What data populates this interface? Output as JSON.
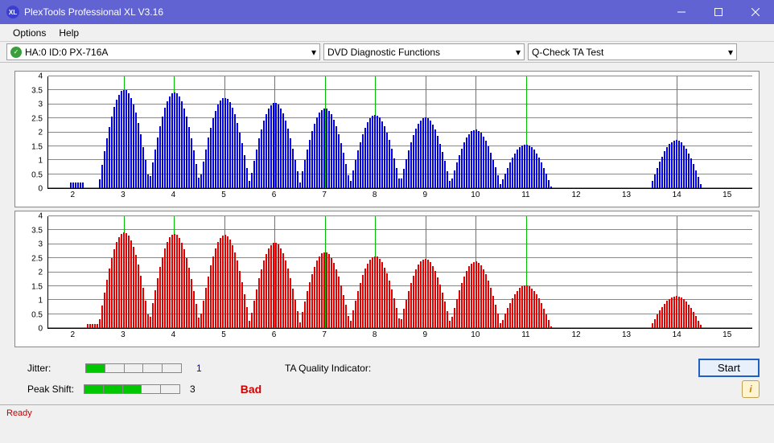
{
  "window": {
    "title": "PlexTools Professional XL V3.16",
    "icon_text": "XL"
  },
  "menu": {
    "options": "Options",
    "help": "Help"
  },
  "toolbar": {
    "drive": "HA:0 ID:0  PX-716A",
    "func": "DVD Diagnostic Functions",
    "test": "Q-Check TA Test"
  },
  "charts": {
    "ylabels": [
      "0",
      "0.5",
      "1",
      "1.5",
      "2",
      "2.5",
      "3",
      "3.5",
      "4"
    ],
    "xlabels": [
      "2",
      "3",
      "4",
      "5",
      "6",
      "7",
      "8",
      "9",
      "10",
      "11",
      "12",
      "13",
      "14",
      "15"
    ],
    "xmin": 1.5,
    "xmax": 15.5,
    "ymax": 4.2,
    "vlines": [
      3,
      4,
      5,
      6,
      7,
      8,
      9,
      10,
      11,
      14
    ],
    "top": {
      "color": "#0000e0",
      "humps": [
        {
          "c": 3,
          "h": 3.7
        },
        {
          "c": 4,
          "h": 3.6
        },
        {
          "c": 5,
          "h": 3.4
        },
        {
          "c": 6,
          "h": 3.2
        },
        {
          "c": 7,
          "h": 3.0
        },
        {
          "c": 8,
          "h": 2.75
        },
        {
          "c": 9,
          "h": 2.65
        },
        {
          "c": 10,
          "h": 2.2
        },
        {
          "c": 11,
          "h": 1.65
        },
        {
          "c": 14,
          "h": 1.8
        }
      ],
      "tail": {
        "c": 2.05,
        "h": 0.2
      }
    },
    "bot": {
      "color": "#e00000",
      "humps": [
        {
          "c": 3,
          "h": 3.6
        },
        {
          "c": 4,
          "h": 3.55
        },
        {
          "c": 5,
          "h": 3.5
        },
        {
          "c": 6,
          "h": 3.2
        },
        {
          "c": 7,
          "h": 2.85
        },
        {
          "c": 8,
          "h": 2.7
        },
        {
          "c": 9,
          "h": 2.6
        },
        {
          "c": 10,
          "h": 2.5
        },
        {
          "c": 11,
          "h": 1.6
        },
        {
          "c": 14,
          "h": 1.2
        }
      ],
      "tail": {
        "c": 2.4,
        "h": 0.15
      }
    }
  },
  "metrics": {
    "jitter_label": "Jitter:",
    "jitter_val": "1",
    "jitter_on": 1,
    "peak_label": "Peak Shift:",
    "peak_val": "3",
    "peak_on": 3,
    "taq_label": "TA Quality Indicator:",
    "taq_value": "Bad",
    "start": "Start"
  },
  "status": {
    "text": "Ready"
  },
  "colors": {
    "titlebar": "#6063d1",
    "green_line": "#00c000",
    "seg_on": "#00c800",
    "bad": "#d00000"
  }
}
